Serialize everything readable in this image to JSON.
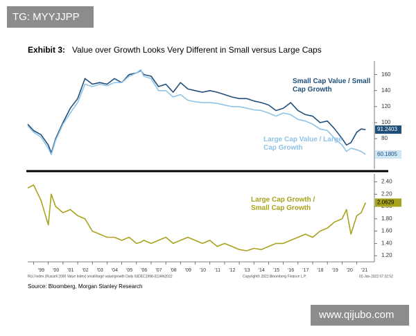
{
  "watermark_top": "TG: MYYJJPP",
  "title_label": "Exhibit 3:",
  "title": "Value over Growth Looks Very Different in Small versus Large Caps",
  "chart_data": [
    {
      "type": "line",
      "x": [
        1998.6,
        1999,
        1999.5,
        2000,
        2000.2,
        2000.5,
        2001,
        2001.5,
        2002,
        2002.5,
        2003,
        2003.5,
        2004,
        2004.5,
        2005,
        2005.5,
        2006,
        2006.3,
        2006.5,
        2007,
        2007.5,
        2008,
        2008.5,
        2009,
        2009.5,
        2010,
        2010.5,
        2011,
        2011.5,
        2012,
        2012.5,
        2013,
        2013.5,
        2014,
        2014.5,
        2015,
        2015.5,
        2016,
        2016.5,
        2017,
        2017.5,
        2018,
        2018.5,
        2019,
        2019.5,
        2020,
        2020.3,
        2020.6,
        2021,
        2021.3,
        2021.6
      ],
      "series": [
        {
          "name": "Small Cap Value / Small Cap Growth",
          "color": "#1f4e79",
          "values": [
            98,
            90,
            85,
            72,
            62,
            80,
            100,
            118,
            130,
            155,
            148,
            150,
            148,
            155,
            150,
            160,
            162,
            165,
            160,
            158,
            145,
            148,
            138,
            150,
            142,
            140,
            138,
            140,
            138,
            135,
            132,
            130,
            130,
            127,
            125,
            122,
            115,
            118,
            125,
            115,
            110,
            108,
            100,
            102,
            92,
            80,
            72,
            75,
            88,
            92,
            91.2403
          ]
        },
        {
          "name": "Large Cap Value / Large Cap Growth",
          "color": "#8ec3e6",
          "values": [
            96,
            88,
            82,
            68,
            60,
            78,
            98,
            112,
            125,
            148,
            145,
            148,
            146,
            150,
            150,
            158,
            162,
            166,
            158,
            155,
            140,
            140,
            132,
            135,
            128,
            126,
            125,
            125,
            124,
            122,
            120,
            120,
            118,
            116,
            115,
            112,
            108,
            112,
            110,
            104,
            102,
            98,
            92,
            90,
            80,
            72,
            64,
            68,
            66,
            64,
            60.1805
          ]
        }
      ],
      "xlim": [
        1998.6,
        2022.2
      ],
      "ylim": [
        42,
        177
      ],
      "yticks": [
        80,
        100,
        120,
        140,
        160
      ]
    },
    {
      "type": "line",
      "x": [
        1998.6,
        1999,
        1999.5,
        2000,
        2000.2,
        2000.5,
        2001,
        2001.5,
        2002,
        2002.5,
        2003,
        2003.5,
        2004,
        2004.5,
        2005,
        2005.5,
        2006,
        2006.3,
        2006.5,
        2007,
        2007.5,
        2008,
        2008.5,
        2009,
        2009.5,
        2010,
        2010.5,
        2011,
        2011.5,
        2012,
        2012.5,
        2013,
        2013.5,
        2014,
        2014.5,
        2015,
        2015.5,
        2016,
        2016.5,
        2017,
        2017.5,
        2018,
        2018.5,
        2019,
        2019.5,
        2020,
        2020.3,
        2020.6,
        2021,
        2021.3,
        2021.6
      ],
      "series": [
        {
          "name": "Large Cap Growth / Small Cap Growth",
          "color": "#a9a21b",
          "values": [
            2.3,
            2.35,
            2.1,
            1.7,
            2.2,
            2.0,
            1.9,
            1.95,
            1.85,
            1.8,
            1.6,
            1.55,
            1.5,
            1.5,
            1.45,
            1.5,
            1.4,
            1.42,
            1.45,
            1.4,
            1.45,
            1.5,
            1.4,
            1.45,
            1.5,
            1.45,
            1.4,
            1.45,
            1.35,
            1.4,
            1.35,
            1.3,
            1.28,
            1.32,
            1.3,
            1.35,
            1.4,
            1.4,
            1.45,
            1.5,
            1.55,
            1.5,
            1.6,
            1.65,
            1.75,
            1.8,
            1.95,
            1.55,
            1.85,
            1.9,
            2.0629
          ]
        }
      ],
      "xlim": [
        1998.6,
        2022.2
      ],
      "ylim": [
        1.1,
        2.53
      ],
      "yticks": [
        {
          "value": 1.2,
          "label": "1.20"
        },
        {
          "value": 1.4,
          "label": "1.40"
        },
        {
          "value": 1.6,
          "label": "1.60"
        },
        {
          "value": 1.8,
          "label": "1.80"
        },
        {
          "value": 2.0,
          "label": "2.00"
        },
        {
          "value": 2.2,
          "label": "2.20"
        },
        {
          "value": 2.4,
          "label": "2.40"
        }
      ],
      "xticks": [
        {
          "value": 1999,
          "label": "'99"
        },
        {
          "value": 2000,
          "label": "'00"
        },
        {
          "value": 2001,
          "label": "'01"
        },
        {
          "value": 2002,
          "label": "'02"
        },
        {
          "value": 2003,
          "label": "'03"
        },
        {
          "value": 2004,
          "label": "'04"
        },
        {
          "value": 2005,
          "label": "'05"
        },
        {
          "value": 2006,
          "label": "'06"
        },
        {
          "value": 2007,
          "label": "'07"
        },
        {
          "value": 2008,
          "label": "'08"
        },
        {
          "value": 2009,
          "label": "'09"
        },
        {
          "value": 2010,
          "label": "'10"
        },
        {
          "value": 2011,
          "label": "'11"
        },
        {
          "value": 2012,
          "label": "'12"
        },
        {
          "value": 2013,
          "label": "'13"
        },
        {
          "value": 2014,
          "label": "'14"
        },
        {
          "value": 2015,
          "label": "'15"
        },
        {
          "value": 2016,
          "label": "'16"
        },
        {
          "value": 2017,
          "label": "'17"
        },
        {
          "value": 2018,
          "label": "'18"
        },
        {
          "value": 2019,
          "label": "'19"
        },
        {
          "value": 2020,
          "label": "'20"
        },
        {
          "value": 2021,
          "label": "'21"
        }
      ]
    }
  ],
  "footer": {
    "index_note": "RUJ Index (Russell 2000 Value Index) small/large value/growth  Daily 03DEC1998-02JAN2022",
    "copyright": "Copyright© 2022 Bloomberg Finance L.P.",
    "timestamp": "02-Jan-2022 07:32:52",
    "source": "Source: Bloomberg, Morgan Stanley Research"
  },
  "watermark_bottom": "www.qijubo.com"
}
